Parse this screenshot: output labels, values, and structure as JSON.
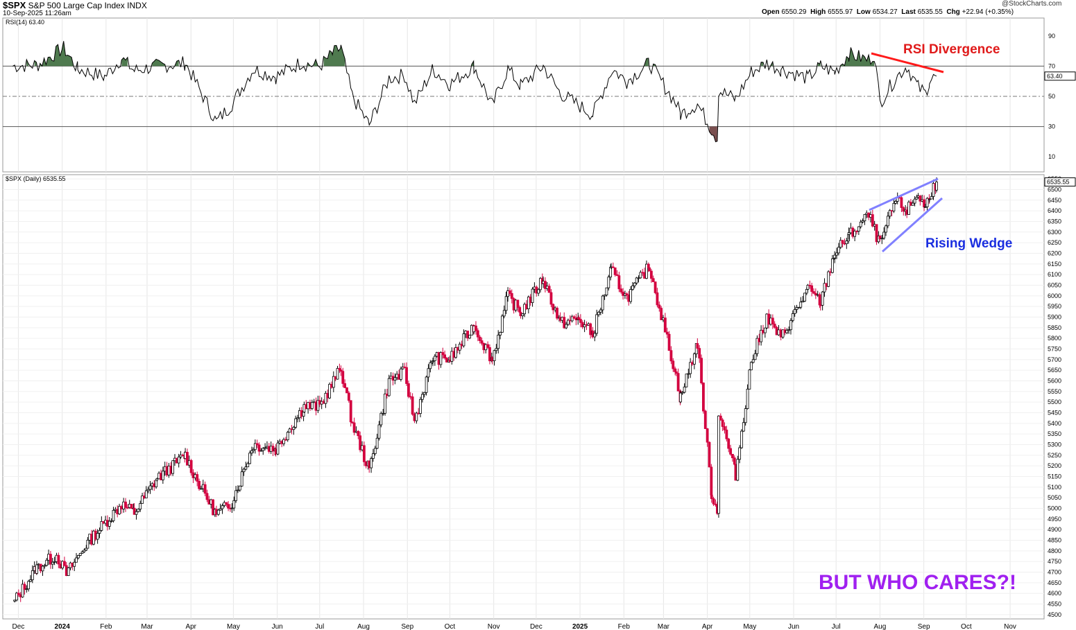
{
  "header": {
    "symbol": "$SPX",
    "name": "S&P 500 Large Cap Index",
    "exchange": "INDX",
    "datetime": "10-Sep-2025 11:26am",
    "watermark": "@StockCharts.com",
    "open_label": "Open",
    "open": "6550.29",
    "high_label": "High",
    "high": "6555.97",
    "low_label": "Low",
    "low": "6534.27",
    "last_label": "Last",
    "last": "6535.55",
    "chg_label": "Chg",
    "chg": "+22.94 (+0.35%)"
  },
  "rsi_panel": {
    "label": "RSI(14) 63.40",
    "current_value": "63.40",
    "y_ticks": [
      90,
      70,
      50,
      30,
      10
    ],
    "ylim": [
      0,
      100
    ],
    "overbought": 70,
    "oversold": 30,
    "midline": 50
  },
  "price_panel": {
    "label": "$SPX (Daily) 6535.55",
    "current_value": "6535.55",
    "ylim": [
      4480,
      6570
    ],
    "y_ticks": [
      4500,
      4550,
      4600,
      4650,
      4700,
      4750,
      4800,
      4850,
      4900,
      4950,
      5000,
      5050,
      5100,
      5150,
      5200,
      5250,
      5300,
      5350,
      5400,
      5450,
      5500,
      5550,
      5600,
      5650,
      5700,
      5750,
      5800,
      5850,
      5900,
      5950,
      6000,
      6050,
      6100,
      6150,
      6200,
      6250,
      6300,
      6350,
      6400,
      6450,
      6500,
      6550
    ]
  },
  "x_axis": {
    "labels": [
      {
        "text": "Dec",
        "date": "2023-12-01",
        "bold": false
      },
      {
        "text": "2024",
        "date": "2024-01-01",
        "bold": true
      },
      {
        "text": "Feb",
        "date": "2024-02-01",
        "bold": false
      },
      {
        "text": "Mar",
        "date": "2024-03-01",
        "bold": false
      },
      {
        "text": "Apr",
        "date": "2024-04-01",
        "bold": false
      },
      {
        "text": "May",
        "date": "2024-05-01",
        "bold": false
      },
      {
        "text": "Jun",
        "date": "2024-06-01",
        "bold": false
      },
      {
        "text": "Jul",
        "date": "2024-07-01",
        "bold": false
      },
      {
        "text": "Aug",
        "date": "2024-08-01",
        "bold": false
      },
      {
        "text": "Sep",
        "date": "2024-09-01",
        "bold": false
      },
      {
        "text": "Oct",
        "date": "2024-10-01",
        "bold": false
      },
      {
        "text": "Nov",
        "date": "2024-11-01",
        "bold": false
      },
      {
        "text": "Dec",
        "date": "2024-12-01",
        "bold": false
      },
      {
        "text": "2025",
        "date": "2025-01-01",
        "bold": true
      },
      {
        "text": "Feb",
        "date": "2025-02-01",
        "bold": false
      },
      {
        "text": "Mar",
        "date": "2025-03-01",
        "bold": false
      },
      {
        "text": "Apr",
        "date": "2025-04-01",
        "bold": false
      },
      {
        "text": "May",
        "date": "2025-05-01",
        "bold": false
      },
      {
        "text": "Jun",
        "date": "2025-06-01",
        "bold": false
      },
      {
        "text": "Jul",
        "date": "2025-07-01",
        "bold": false
      },
      {
        "text": "Aug",
        "date": "2025-08-01",
        "bold": false
      },
      {
        "text": "Sep",
        "date": "2025-09-01",
        "bold": false
      },
      {
        "text": "Oct",
        "date": "2025-10-01",
        "bold": false
      },
      {
        "text": "Nov",
        "date": "2025-11-01",
        "bold": false
      }
    ]
  },
  "annotations": {
    "rsi_divergence": "RSI Divergence",
    "rising_wedge": "Rising Wedge",
    "but_who_cares": "BUT WHO CARES?!"
  },
  "colors": {
    "up_candle": "#000000",
    "down_candle": "#d3003f",
    "rsi_overbought_fill": "#4f7a4f",
    "rsi_oversold_fill": "#7a4f4f",
    "divergence_line": "#ff1a1a",
    "wedge_line": "#8080ff",
    "rising_wedge_text": "#1a2ee0",
    "rsi_divergence_text": "#e01a1a",
    "but_who_cares_text": "#a020f0"
  },
  "chart_data": [
    {
      "type": "line",
      "title": "RSI(14) 63.40",
      "ylim": [
        0,
        100
      ],
      "x": [
        "2023-11-27",
        "2023-12-15",
        "2024-01-02",
        "2024-01-12",
        "2024-01-31",
        "2024-02-12",
        "2024-02-21",
        "2024-03-08",
        "2024-03-28",
        "2024-04-04",
        "2024-04-19",
        "2024-04-30",
        "2024-05-15",
        "2024-05-31",
        "2024-06-17",
        "2024-07-01",
        "2024-07-10",
        "2024-07-16",
        "2024-07-24",
        "2024-08-05",
        "2024-08-19",
        "2024-08-30",
        "2024-09-06",
        "2024-09-19",
        "2024-10-01",
        "2024-10-18",
        "2024-10-31",
        "2024-11-11",
        "2024-11-20",
        "2024-12-06",
        "2024-12-18",
        "2025-01-10",
        "2025-01-24",
        "2025-02-03",
        "2025-02-19",
        "2025-03-10",
        "2025-03-13",
        "2025-03-25",
        "2025-04-04",
        "2025-04-08",
        "2025-04-09",
        "2025-04-21",
        "2025-05-02",
        "2025-05-13",
        "2025-05-23",
        "2025-06-11",
        "2025-06-20",
        "2025-06-30",
        "2025-07-10",
        "2025-07-24",
        "2025-07-28",
        "2025-08-01",
        "2025-08-12",
        "2025-08-20",
        "2025-08-28",
        "2025-09-02",
        "2025-09-05",
        "2025-09-10"
      ],
      "values": [
        70,
        71,
        82,
        68,
        63,
        75,
        67,
        70,
        72,
        60,
        33,
        45,
        68,
        63,
        72,
        70,
        78,
        82,
        50,
        31,
        62,
        64,
        45,
        68,
        58,
        70,
        44,
        68,
        57,
        70,
        52,
        38,
        68,
        60,
        72,
        45,
        38,
        45,
        28,
        22,
        54,
        48,
        66,
        72,
        68,
        62,
        70,
        66,
        78,
        74,
        78,
        46,
        62,
        70,
        56,
        52,
        60,
        63.4
      ]
    },
    {
      "type": "line",
      "title": "$SPX (Daily) 6535.55",
      "ylim": [
        4480,
        6570
      ],
      "x": [
        "2023-11-27",
        "2023-12-14",
        "2023-12-28",
        "2024-01-04",
        "2024-01-19",
        "2024-02-12",
        "2024-02-21",
        "2024-03-08",
        "2024-03-28",
        "2024-04-04",
        "2024-04-19",
        "2024-04-30",
        "2024-05-15",
        "2024-05-31",
        "2024-06-20",
        "2024-07-01",
        "2024-07-16",
        "2024-07-24",
        "2024-08-05",
        "2024-08-19",
        "2024-08-30",
        "2024-09-06",
        "2024-09-19",
        "2024-10-01",
        "2024-10-18",
        "2024-10-31",
        "2024-11-11",
        "2024-11-20",
        "2024-12-06",
        "2024-12-18",
        "2024-12-31",
        "2025-01-10",
        "2025-01-23",
        "2025-02-03",
        "2025-02-19",
        "2025-03-10",
        "2025-03-13",
        "2025-03-25",
        "2025-04-04",
        "2025-04-08",
        "2025-04-09",
        "2025-04-21",
        "2025-05-02",
        "2025-05-13",
        "2025-05-23",
        "2025-06-11",
        "2025-06-20",
        "2025-06-30",
        "2025-07-10",
        "2025-07-24",
        "2025-08-01",
        "2025-08-12",
        "2025-08-20",
        "2025-08-28",
        "2025-09-02",
        "2025-09-05",
        "2025-09-10"
      ],
      "values": [
        4550,
        4720,
        4780,
        4690,
        4840,
        5020,
        4980,
        5140,
        5250,
        5150,
        4970,
        5030,
        5300,
        5280,
        5480,
        5480,
        5660,
        5400,
        5180,
        5600,
        5640,
        5410,
        5710,
        5700,
        5860,
        5700,
        6000,
        5920,
        6080,
        5870,
        5890,
        5820,
        6120,
        5990,
        6140,
        5620,
        5520,
        5780,
        5070,
        4980,
        5460,
        5160,
        5690,
        5900,
        5800,
        6030,
        5970,
        6200,
        6280,
        6380,
        6240,
        6450,
        6400,
        6480,
        6410,
        6480,
        6535.55
      ]
    }
  ]
}
